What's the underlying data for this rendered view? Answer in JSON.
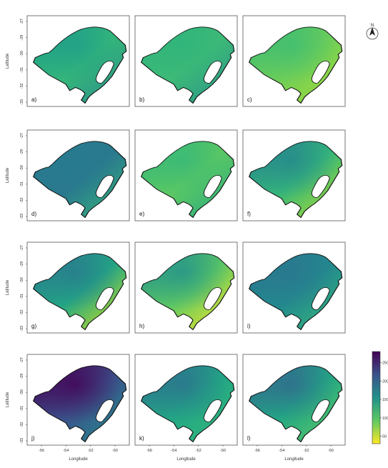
{
  "figure": {
    "panels": [
      {
        "label": "a)",
        "palette": [
          "#1f9e89",
          "#35b779",
          "#2c8a8c"
        ]
      },
      {
        "label": "b)",
        "palette": [
          "#2fb47c",
          "#3eba76",
          "#26918c"
        ]
      },
      {
        "label": "c)",
        "palette": [
          "#3dbc74",
          "#6ece58",
          "#a5db36"
        ]
      },
      {
        "label": "d)",
        "palette": [
          "#287c8e",
          "#2a788e",
          "#35b779"
        ]
      },
      {
        "label": "e)",
        "palette": [
          "#35b779",
          "#5ec962",
          "#22a884"
        ]
      },
      {
        "label": "f)",
        "palette": [
          "#25858e",
          "#35b779",
          "#b5de2b"
        ]
      },
      {
        "label": "g)",
        "palette": [
          "#29798e",
          "#22a884",
          "#d8e219"
        ]
      },
      {
        "label": "h)",
        "palette": [
          "#21918c",
          "#5ec962",
          "#fde725"
        ]
      },
      {
        "label": "i)",
        "palette": [
          "#2a768e",
          "#23898e",
          "#35b779"
        ]
      },
      {
        "label": "j)",
        "palette": [
          "#440154",
          "#3b528b",
          "#21918c"
        ]
      },
      {
        "label": "k)",
        "palette": [
          "#2c718e",
          "#22a884",
          "#35b779"
        ]
      },
      {
        "label": "l)",
        "palette": [
          "#31688e",
          "#22a884",
          "#5ec962"
        ]
      }
    ],
    "y_ticks": [
      "-27",
      "-29",
      "-30",
      "-31",
      "-32",
      "-33"
    ],
    "x_ticks": [
      "-56",
      "-54",
      "-52",
      "-50"
    ],
    "y_axis_label": "Latitude",
    "x_axis_label": "Longitude",
    "north_label": "N",
    "colorbar": {
      "ticks": [
        "250",
        "200",
        "150",
        "100",
        "50"
      ],
      "range": [
        30,
        280
      ],
      "colors": [
        "#440154",
        "#3b528b",
        "#21918c",
        "#5ec962",
        "#fde725"
      ]
    }
  }
}
